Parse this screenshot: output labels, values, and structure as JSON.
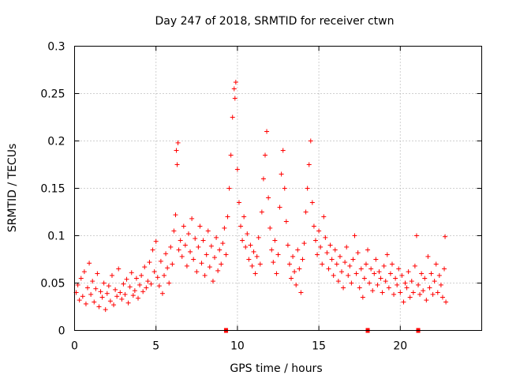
{
  "chart_data": {
    "type": "scatter",
    "title": "Day 247 of 2018, SRMTID for receiver ctwn",
    "xlabel": "GPS time / hours",
    "ylabel": "SRMTID / TECUs",
    "xlim": [
      0,
      25.0
    ],
    "ylim": [
      0,
      0.3
    ],
    "xticks": [
      0,
      5,
      10,
      15,
      20
    ],
    "xtick_labels": [
      "0",
      "5",
      "10",
      "15",
      "20"
    ],
    "yticks": [
      0,
      0.05,
      0.1,
      0.15,
      0.2,
      0.25,
      0.3
    ],
    "ytick_labels": [
      "0",
      "0.05",
      "0.1",
      "0.15",
      "0.2",
      "0.25",
      "0.3"
    ],
    "grid": true,
    "marker": "plus",
    "color": "#ff0000",
    "series": [
      {
        "name": "SRMTID",
        "points": [
          [
            0.1,
            0.04
          ],
          [
            0.2,
            0.048
          ],
          [
            0.3,
            0.032
          ],
          [
            0.4,
            0.055
          ],
          [
            0.5,
            0.036
          ],
          [
            0.6,
            0.062
          ],
          [
            0.7,
            0.028
          ],
          [
            0.8,
            0.045
          ],
          [
            0.9,
            0.071
          ],
          [
            1.0,
            0.038
          ],
          [
            1.1,
            0.052
          ],
          [
            1.2,
            0.03
          ],
          [
            1.3,
            0.044
          ],
          [
            1.4,
            0.06
          ],
          [
            1.5,
            0.025
          ],
          [
            1.6,
            0.041
          ],
          [
            1.7,
            0.035
          ],
          [
            1.8,
            0.05
          ],
          [
            1.9,
            0.022
          ],
          [
            2.0,
            0.039
          ],
          [
            2.1,
            0.047
          ],
          [
            2.2,
            0.031
          ],
          [
            2.3,
            0.058
          ],
          [
            2.4,
            0.027
          ],
          [
            2.5,
            0.043
          ],
          [
            2.6,
            0.036
          ],
          [
            2.7,
            0.065
          ],
          [
            2.8,
            0.04
          ],
          [
            2.9,
            0.033
          ],
          [
            3.0,
            0.049
          ],
          [
            3.1,
            0.038
          ],
          [
            3.2,
            0.054
          ],
          [
            3.3,
            0.029
          ],
          [
            3.4,
            0.046
          ],
          [
            3.5,
            0.061
          ],
          [
            3.6,
            0.037
          ],
          [
            3.7,
            0.042
          ],
          [
            3.8,
            0.055
          ],
          [
            3.9,
            0.034
          ],
          [
            4.0,
            0.048
          ],
          [
            4.1,
            0.058
          ],
          [
            4.2,
            0.041
          ],
          [
            4.3,
            0.067
          ],
          [
            4.4,
            0.045
          ],
          [
            4.5,
            0.052
          ],
          [
            4.6,
            0.072
          ],
          [
            4.7,
            0.049
          ],
          [
            4.8,
            0.085
          ],
          [
            4.9,
            0.062
          ],
          [
            5.0,
            0.094
          ],
          [
            5.1,
            0.056
          ],
          [
            5.2,
            0.047
          ],
          [
            5.3,
            0.073
          ],
          [
            5.4,
            0.039
          ],
          [
            5.5,
            0.058
          ],
          [
            5.6,
            0.081
          ],
          [
            5.7,
            0.066
          ],
          [
            5.8,
            0.05
          ],
          [
            5.9,
            0.088
          ],
          [
            6.0,
            0.07
          ],
          [
            6.1,
            0.105
          ],
          [
            6.2,
            0.122
          ],
          [
            6.25,
            0.19
          ],
          [
            6.3,
            0.175
          ],
          [
            6.35,
            0.198
          ],
          [
            6.4,
            0.085
          ],
          [
            6.5,
            0.095
          ],
          [
            6.6,
            0.078
          ],
          [
            6.7,
            0.11
          ],
          [
            6.8,
            0.09
          ],
          [
            6.9,
            0.068
          ],
          [
            7.0,
            0.102
          ],
          [
            7.1,
            0.083
          ],
          [
            7.2,
            0.118
          ],
          [
            7.3,
            0.075
          ],
          [
            7.4,
            0.097
          ],
          [
            7.5,
            0.062
          ],
          [
            7.6,
            0.088
          ],
          [
            7.7,
            0.11
          ],
          [
            7.8,
            0.071
          ],
          [
            7.9,
            0.095
          ],
          [
            8.0,
            0.058
          ],
          [
            8.1,
            0.08
          ],
          [
            8.2,
            0.105
          ],
          [
            8.3,
            0.067
          ],
          [
            8.4,
            0.089
          ],
          [
            8.5,
            0.052
          ],
          [
            8.6,
            0.077
          ],
          [
            8.7,
            0.098
          ],
          [
            8.8,
            0.063
          ],
          [
            8.9,
            0.085
          ],
          [
            9.0,
            0.07
          ],
          [
            9.1,
            0.092
          ],
          [
            9.2,
            0.108
          ],
          [
            9.3,
            0.08
          ],
          [
            9.4,
            0.12
          ],
          [
            9.5,
            0.15
          ],
          [
            9.6,
            0.185
          ],
          [
            9.7,
            0.225
          ],
          [
            9.8,
            0.255
          ],
          [
            9.85,
            0.245
          ],
          [
            9.9,
            0.262
          ],
          [
            10.0,
            0.17
          ],
          [
            10.1,
            0.135
          ],
          [
            10.2,
            0.11
          ],
          [
            10.3,
            0.095
          ],
          [
            10.4,
            0.12
          ],
          [
            10.5,
            0.088
          ],
          [
            10.6,
            0.102
          ],
          [
            10.7,
            0.075
          ],
          [
            10.8,
            0.09
          ],
          [
            10.9,
            0.068
          ],
          [
            11.0,
            0.083
          ],
          [
            11.1,
            0.06
          ],
          [
            11.2,
            0.078
          ],
          [
            11.3,
            0.098
          ],
          [
            11.4,
            0.07
          ],
          [
            11.5,
            0.125
          ],
          [
            11.6,
            0.16
          ],
          [
            11.7,
            0.185
          ],
          [
            11.8,
            0.21
          ],
          [
            11.9,
            0.14
          ],
          [
            12.0,
            0.108
          ],
          [
            12.1,
            0.085
          ],
          [
            12.2,
            0.072
          ],
          [
            12.3,
            0.095
          ],
          [
            12.4,
            0.06
          ],
          [
            12.5,
            0.08
          ],
          [
            12.6,
            0.13
          ],
          [
            12.7,
            0.165
          ],
          [
            12.8,
            0.19
          ],
          [
            12.9,
            0.15
          ],
          [
            13.0,
            0.115
          ],
          [
            13.1,
            0.09
          ],
          [
            13.2,
            0.07
          ],
          [
            13.3,
            0.055
          ],
          [
            13.4,
            0.078
          ],
          [
            13.5,
            0.062
          ],
          [
            13.6,
            0.048
          ],
          [
            13.7,
            0.085
          ],
          [
            13.8,
            0.065
          ],
          [
            13.9,
            0.04
          ],
          [
            14.0,
            0.075
          ],
          [
            14.1,
            0.092
          ],
          [
            14.2,
            0.125
          ],
          [
            14.3,
            0.15
          ],
          [
            14.4,
            0.175
          ],
          [
            14.5,
            0.2
          ],
          [
            14.6,
            0.135
          ],
          [
            14.7,
            0.11
          ],
          [
            14.8,
            0.095
          ],
          [
            14.9,
            0.08
          ],
          [
            15.0,
            0.105
          ],
          [
            15.1,
            0.088
          ],
          [
            15.2,
            0.07
          ],
          [
            15.3,
            0.12
          ],
          [
            15.4,
            0.098
          ],
          [
            15.5,
            0.082
          ],
          [
            15.6,
            0.065
          ],
          [
            15.7,
            0.09
          ],
          [
            15.8,
            0.075
          ],
          [
            15.9,
            0.058
          ],
          [
            16.0,
            0.085
          ],
          [
            16.1,
            0.07
          ],
          [
            16.2,
            0.052
          ],
          [
            16.3,
            0.078
          ],
          [
            16.4,
            0.062
          ],
          [
            16.5,
            0.045
          ],
          [
            16.6,
            0.072
          ],
          [
            16.7,
            0.088
          ],
          [
            16.8,
            0.058
          ],
          [
            16.9,
            0.068
          ],
          [
            17.0,
            0.05
          ],
          [
            17.1,
            0.075
          ],
          [
            17.2,
            0.1
          ],
          [
            17.3,
            0.06
          ],
          [
            17.4,
            0.082
          ],
          [
            17.5,
            0.045
          ],
          [
            17.6,
            0.065
          ],
          [
            17.7,
            0.035
          ],
          [
            17.8,
            0.055
          ],
          [
            17.9,
            0.07
          ],
          [
            18.0,
            0.085
          ],
          [
            18.1,
            0.05
          ],
          [
            18.2,
            0.065
          ],
          [
            18.3,
            0.042
          ],
          [
            18.4,
            0.06
          ],
          [
            18.5,
            0.075
          ],
          [
            18.6,
            0.048
          ],
          [
            18.7,
            0.062
          ],
          [
            18.8,
            0.055
          ],
          [
            18.9,
            0.04
          ],
          [
            19.0,
            0.068
          ],
          [
            19.1,
            0.052
          ],
          [
            19.2,
            0.08
          ],
          [
            19.3,
            0.045
          ],
          [
            19.4,
            0.06
          ],
          [
            19.5,
            0.07
          ],
          [
            19.6,
            0.038
          ],
          [
            19.7,
            0.055
          ],
          [
            19.8,
            0.048
          ],
          [
            19.9,
            0.065
          ],
          [
            20.0,
            0.04
          ],
          [
            20.1,
            0.058
          ],
          [
            20.2,
            0.03
          ],
          [
            20.3,
            0.05
          ],
          [
            20.4,
            0.045
          ],
          [
            20.5,
            0.062
          ],
          [
            20.6,
            0.035
          ],
          [
            20.7,
            0.052
          ],
          [
            20.8,
            0.04
          ],
          [
            20.9,
            0.068
          ],
          [
            21.0,
            0.1
          ],
          [
            21.1,
            0.048
          ],
          [
            21.2,
            0.038
          ],
          [
            21.3,
            0.06
          ],
          [
            21.4,
            0.042
          ],
          [
            21.5,
            0.055
          ],
          [
            21.6,
            0.032
          ],
          [
            21.7,
            0.078
          ],
          [
            21.8,
            0.045
          ],
          [
            21.9,
            0.06
          ],
          [
            22.0,
            0.038
          ],
          [
            22.1,
            0.052
          ],
          [
            22.2,
            0.07
          ],
          [
            22.3,
            0.04
          ],
          [
            22.4,
            0.058
          ],
          [
            22.5,
            0.048
          ],
          [
            22.6,
            0.035
          ],
          [
            22.7,
            0.065
          ],
          [
            22.75,
            0.099
          ],
          [
            22.8,
            0.03
          ]
        ]
      }
    ],
    "zero_points": [
      9.3,
      18.0,
      21.1
    ]
  }
}
